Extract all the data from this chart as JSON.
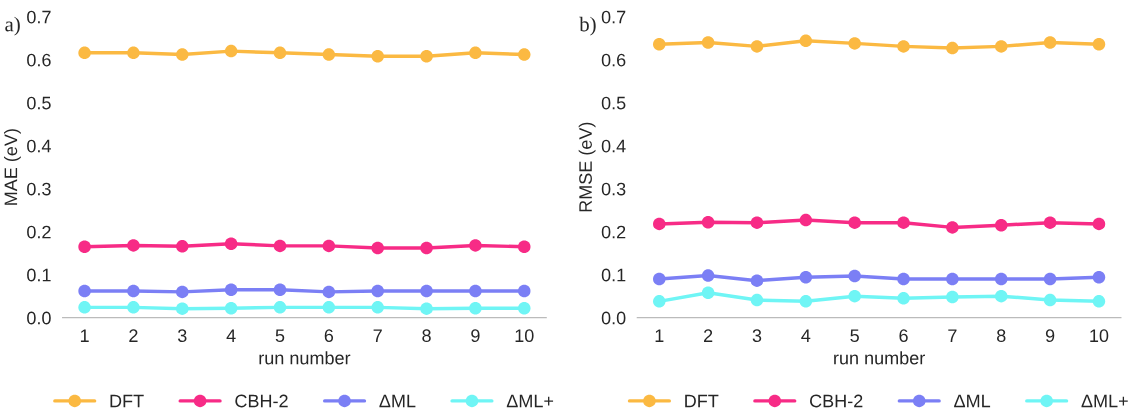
{
  "chart_data": [
    {
      "type": "line",
      "title": "a)",
      "xlabel": "run number",
      "ylabel": "MAE (eV)",
      "categories": [
        "1",
        "2",
        "3",
        "4",
        "5",
        "6",
        "7",
        "8",
        "9",
        "10"
      ],
      "ylim": [
        0,
        0.7
      ],
      "yticks": [
        {
          "value": 0,
          "label": "0.0"
        },
        0.1,
        0.2,
        0.3,
        0.4,
        0.5,
        0.6,
        0.7
      ],
      "grid": false,
      "legend": "bottom",
      "marker": "circle",
      "line_style": "solid",
      "series": [
        {
          "name": "DFT",
          "color": "#fbb942",
          "values": [
            0.616,
            0.616,
            0.612,
            0.62,
            0.616,
            0.612,
            0.608,
            0.608,
            0.616,
            0.612
          ]
        },
        {
          "name": "CBH-2",
          "color": "#f72b86",
          "values": [
            0.165,
            0.168,
            0.166,
            0.172,
            0.167,
            0.167,
            0.162,
            0.162,
            0.168,
            0.165
          ]
        },
        {
          "name": "ΔML",
          "color": "#7b7ff5",
          "values": [
            0.062,
            0.062,
            0.06,
            0.065,
            0.065,
            0.06,
            0.062,
            0.062,
            0.062,
            0.062
          ]
        },
        {
          "name": "ΔML+",
          "color": "#6ff5f5",
          "values": [
            0.024,
            0.024,
            0.021,
            0.022,
            0.024,
            0.024,
            0.024,
            0.021,
            0.022,
            0.022
          ]
        }
      ]
    },
    {
      "type": "line",
      "title": "b)",
      "xlabel": "run number",
      "ylabel": "RMSE (eV)",
      "categories": [
        "1",
        "2",
        "3",
        "4",
        "5",
        "6",
        "7",
        "8",
        "9",
        "10"
      ],
      "ylim": [
        0,
        0.7
      ],
      "yticks": [
        {
          "value": 0,
          "label": "0.0"
        },
        0.1,
        0.2,
        0.3,
        0.4,
        0.5,
        0.6,
        0.7
      ],
      "grid": false,
      "legend": "bottom",
      "marker": "circle",
      "line_style": "solid",
      "series": [
        {
          "name": "DFT",
          "color": "#fbb942",
          "values": [
            0.636,
            0.64,
            0.631,
            0.644,
            0.638,
            0.631,
            0.627,
            0.631,
            0.64,
            0.636
          ]
        },
        {
          "name": "CBH-2",
          "color": "#f72b86",
          "values": [
            0.218,
            0.222,
            0.221,
            0.227,
            0.221,
            0.221,
            0.21,
            0.215,
            0.221,
            0.218
          ]
        },
        {
          "name": "ΔML",
          "color": "#7b7ff5",
          "values": [
            0.09,
            0.098,
            0.086,
            0.094,
            0.097,
            0.09,
            0.09,
            0.09,
            0.09,
            0.094
          ]
        },
        {
          "name": "ΔML+",
          "color": "#6ff5f5",
          "values": [
            0.038,
            0.058,
            0.041,
            0.038,
            0.05,
            0.045,
            0.048,
            0.05,
            0.041,
            0.038
          ]
        }
      ]
    }
  ]
}
